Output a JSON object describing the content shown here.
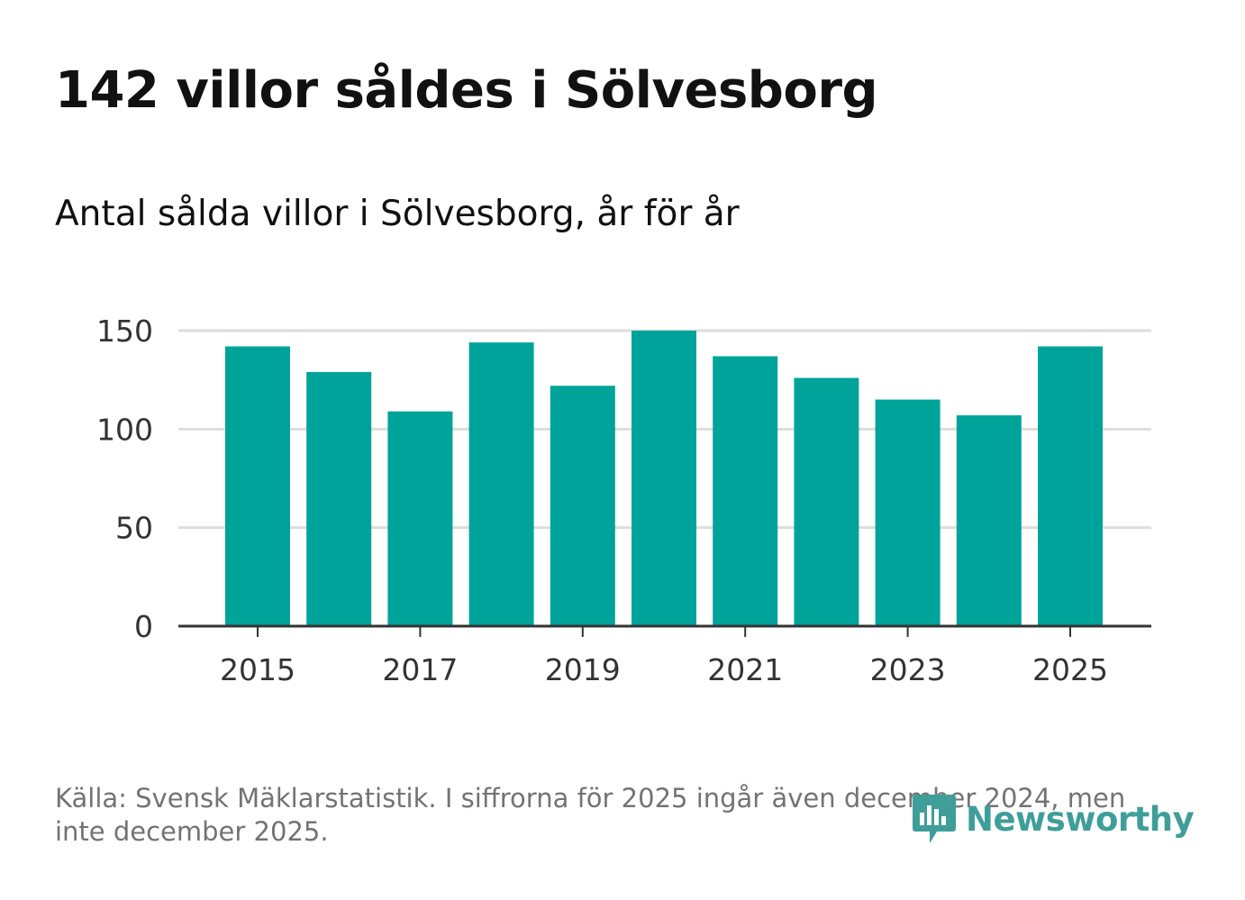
{
  "title": "142 villor såldes i Sölvesborg",
  "subtitle": "Antal sålda villor i Sölvesborg, år för år",
  "source": "Källa: Svensk Mäklarstatistik. I siffrorna för 2025 ingår även december 2024, men inte december 2025.",
  "brand": {
    "name": "Newsworthy",
    "icon": "newsworthy-logo-icon",
    "color": "#3f9e99"
  },
  "colors": {
    "bar": "#00a39a",
    "grid": "#dddddd",
    "axis": "#333333"
  },
  "chart_data": {
    "type": "bar",
    "title": "",
    "xlabel": "",
    "ylabel": "",
    "categories": [
      "2015",
      "2016",
      "2017",
      "2018",
      "2019",
      "2020",
      "2021",
      "2022",
      "2023",
      "2024",
      "2025"
    ],
    "values": [
      142,
      129,
      109,
      144,
      122,
      150,
      137,
      126,
      115,
      107,
      142
    ],
    "x_tick_labels": [
      "2015",
      "2017",
      "2019",
      "2021",
      "2023",
      "2025"
    ],
    "y_ticks": [
      0,
      50,
      100,
      150
    ],
    "ylim": [
      0,
      150
    ],
    "grid": true
  }
}
